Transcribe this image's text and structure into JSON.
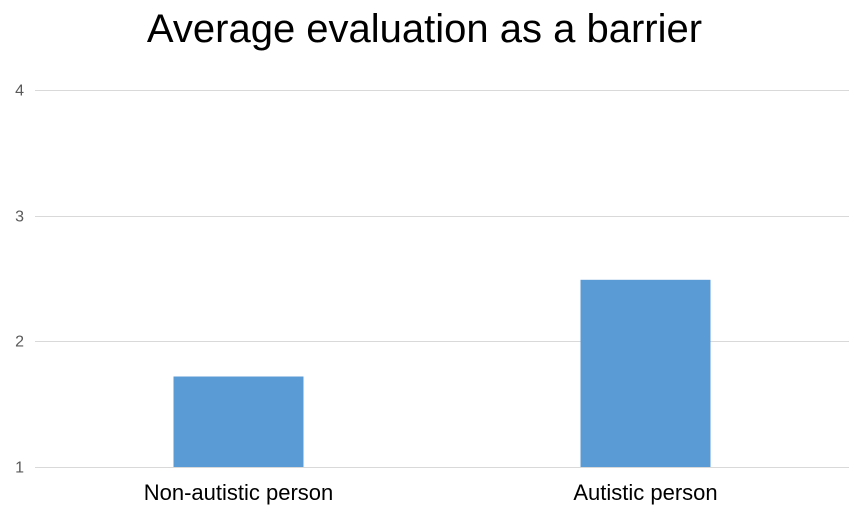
{
  "chart_data": {
    "type": "bar",
    "title": "Average evaluation as a barrier",
    "categories": [
      "Non-autistic person",
      "Autistic person"
    ],
    "values": [
      1.72,
      2.49
    ],
    "ylim": [
      1,
      4
    ],
    "yticks": [
      1,
      2,
      3,
      4
    ],
    "xlabel": "",
    "ylabel": "",
    "grid": true,
    "legend": "none",
    "bar_color": "#5b9bd5",
    "grid_color": "#d9d9d9"
  }
}
